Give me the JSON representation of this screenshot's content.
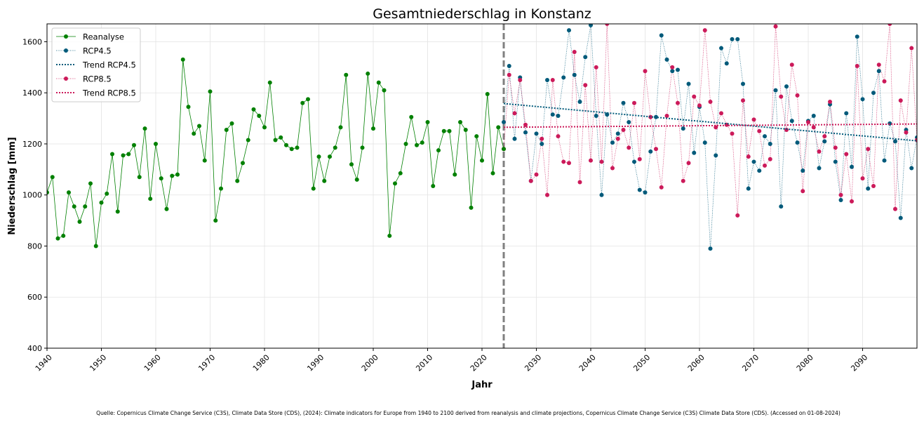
{
  "chart_data": {
    "type": "line",
    "title": "Gesamtniederschlag in Konstanz",
    "xlabel": "Jahr",
    "ylabel": "Niederschlag [mm]",
    "xlim": [
      1940,
      2100
    ],
    "ylim": [
      400,
      1670
    ],
    "x_ticks": [
      1940,
      1950,
      1960,
      1970,
      1980,
      1990,
      2000,
      2010,
      2020,
      2030,
      2040,
      2050,
      2060,
      2070,
      2080,
      2090
    ],
    "y_ticks": [
      400,
      600,
      800,
      1000,
      1200,
      1400,
      1600
    ],
    "grid": true,
    "legend_position": "top-left",
    "divider_year": 2024,
    "colors": {
      "reanalyse": "#008000",
      "rcp45": "#005a7a",
      "rcp85": "#cc1a5a",
      "divider": "#808080"
    },
    "series": [
      {
        "name": "Reanalyse",
        "x_start": 1940,
        "values": [
          1010,
          1070,
          830,
          840,
          1010,
          955,
          895,
          955,
          1045,
          800,
          970,
          1005,
          1160,
          935,
          1155,
          1160,
          1195,
          1070,
          1260,
          985,
          1200,
          1065,
          945,
          1075,
          1080,
          1530,
          1345,
          1240,
          1270,
          1135,
          1405,
          900,
          1025,
          1255,
          1280,
          1055,
          1125,
          1215,
          1335,
          1310,
          1265,
          1440,
          1215,
          1225,
          1195,
          1180,
          1185,
          1360,
          1375,
          1025,
          1150,
          1055,
          1150,
          1185,
          1265,
          1470,
          1120,
          1060,
          1185,
          1475,
          1260,
          1440,
          1410,
          840,
          1045,
          1085,
          1200,
          1305,
          1195,
          1205,
          1285,
          1035,
          1175,
          1250,
          1250,
          1080,
          1285,
          1255,
          950,
          1230,
          1135,
          1395,
          1085,
          1265,
          1180
        ]
      },
      {
        "name": "RCP4.5",
        "x_start": 2024,
        "values": [
          1285,
          1505,
          1220,
          1460,
          1245,
          1055,
          1240,
          1200,
          1450,
          1315,
          1310,
          1460,
          1645,
          1470,
          1365,
          1540,
          1665,
          1310,
          1000,
          1315,
          1205,
          1240,
          1360,
          1285,
          1130,
          1020,
          1010,
          1170,
          1305,
          1625,
          1530,
          1485,
          1490,
          1260,
          1435,
          1165,
          1345,
          1205,
          790,
          1155,
          1575,
          1515,
          1610,
          1610,
          1435,
          1025,
          1130,
          1095,
          1230,
          1200,
          1410,
          955,
          1425,
          1290,
          1205,
          1095,
          1290,
          1310,
          1105,
          1210,
          1355,
          1130,
          980,
          1320,
          1110,
          1620,
          1375,
          1025,
          1400,
          1485,
          1135,
          1280,
          1210,
          910,
          1255,
          1105,
          1225
        ]
      },
      {
        "name": "RCP8.5",
        "x_start": 2024,
        "values": [
          1180,
          1470,
          1320,
          1450,
          1275,
          1055,
          1080,
          1220,
          1000,
          1450,
          1230,
          1130,
          1125,
          1560,
          1050,
          1430,
          1135,
          1500,
          1130,
          1670,
          1105,
          1220,
          1255,
          1185,
          1360,
          1140,
          1485,
          1305,
          1180,
          1030,
          1310,
          1500,
          1360,
          1055,
          1125,
          1385,
          1350,
          1645,
          1365,
          1265,
          1320,
          1275,
          1240,
          920,
          1370,
          1150,
          1295,
          1250,
          1115,
          1140,
          1660,
          1385,
          1255,
          1510,
          1390,
          1015,
          1285,
          1265,
          1170,
          1230,
          1365,
          1185,
          1000,
          1160,
          975,
          1505,
          1065,
          1180,
          1035,
          1510,
          1445,
          1670,
          945,
          1370,
          1245,
          1575,
          1215
        ]
      },
      {
        "name": "Trend RCP4.5",
        "x": [
          2024,
          2100
        ],
        "values": [
          1358,
          1212
        ]
      },
      {
        "name": "Trend RCP8.5",
        "x": [
          2024,
          2100
        ],
        "values": [
          1265,
          1278
        ]
      }
    ]
  },
  "source_note": "Quelle: Copernicus Climate Change Service (C3S), Climate Data Store (CDS), (2024): Climate indicators for Europe from 1940 to 2100 derived from reanalysis and climate projections, Copernicus Climate Change Service (C3S) Climate Data Store (CDS). (Accessed on 01-08-2024)"
}
